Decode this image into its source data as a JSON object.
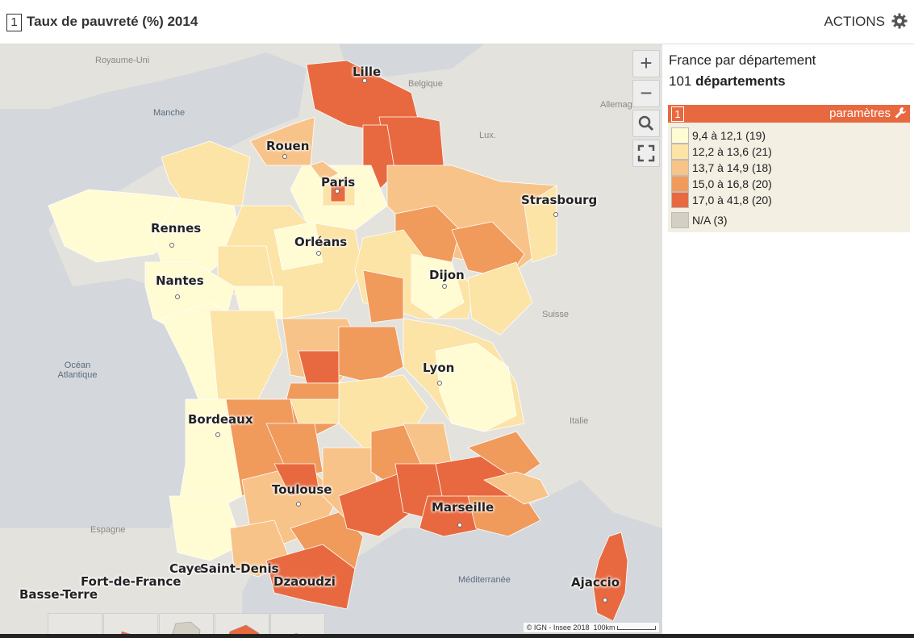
{
  "header": {
    "number": "1",
    "title": "Taux de pauvreté (%) 2014",
    "actions_label": "ACTIONS"
  },
  "map": {
    "countries": [
      "Royaume-Uni",
      "Belgique",
      "Allemagne",
      "Lux.",
      "Suisse",
      "Italie",
      "Espagne"
    ],
    "seas": [
      "Manche",
      "Océan\nAtlantique",
      "Méditerranée"
    ],
    "cities": [
      "Lille",
      "Rouen",
      "Paris",
      "Strasbourg",
      "Rennes",
      "Orléans",
      "Nantes",
      "Dijon",
      "Lyon",
      "Bordeaux",
      "Toulouse",
      "Marseille",
      "Ajaccio"
    ],
    "overseas": [
      "Basse-Terre",
      "Fort-de-France",
      "Cayenne",
      "Saint-Denis",
      "Dzaoudzi"
    ],
    "overseas_labels": [
      "Basse-Terre",
      "Fort-de-France",
      "Caye",
      "Saint-Denis",
      "Dzaoudzi"
    ],
    "attribution": "© IGN - Insee 2018",
    "scale": "100km",
    "controls": {
      "zoom_in": "+",
      "zoom_out": "−"
    }
  },
  "panel": {
    "scope": "France par département",
    "count": "101",
    "unit": "départements",
    "legend": {
      "number": "1",
      "params_label": "paramètres",
      "classes": [
        {
          "label": "9,4 à 12,1 (19)",
          "color": "#fffbd2"
        },
        {
          "label": "12,2 à 13,6 (21)",
          "color": "#fce3a6"
        },
        {
          "label": "13,7 à 14,9 (18)",
          "color": "#f8c389"
        },
        {
          "label": "15,0 à 16,8 (20)",
          "color": "#f09a5c"
        },
        {
          "label": "17,0 à 41,8 (20)",
          "color": "#e8693f"
        },
        {
          "label": "N/A (3)",
          "color": "#d3cfc4"
        }
      ]
    }
  }
}
